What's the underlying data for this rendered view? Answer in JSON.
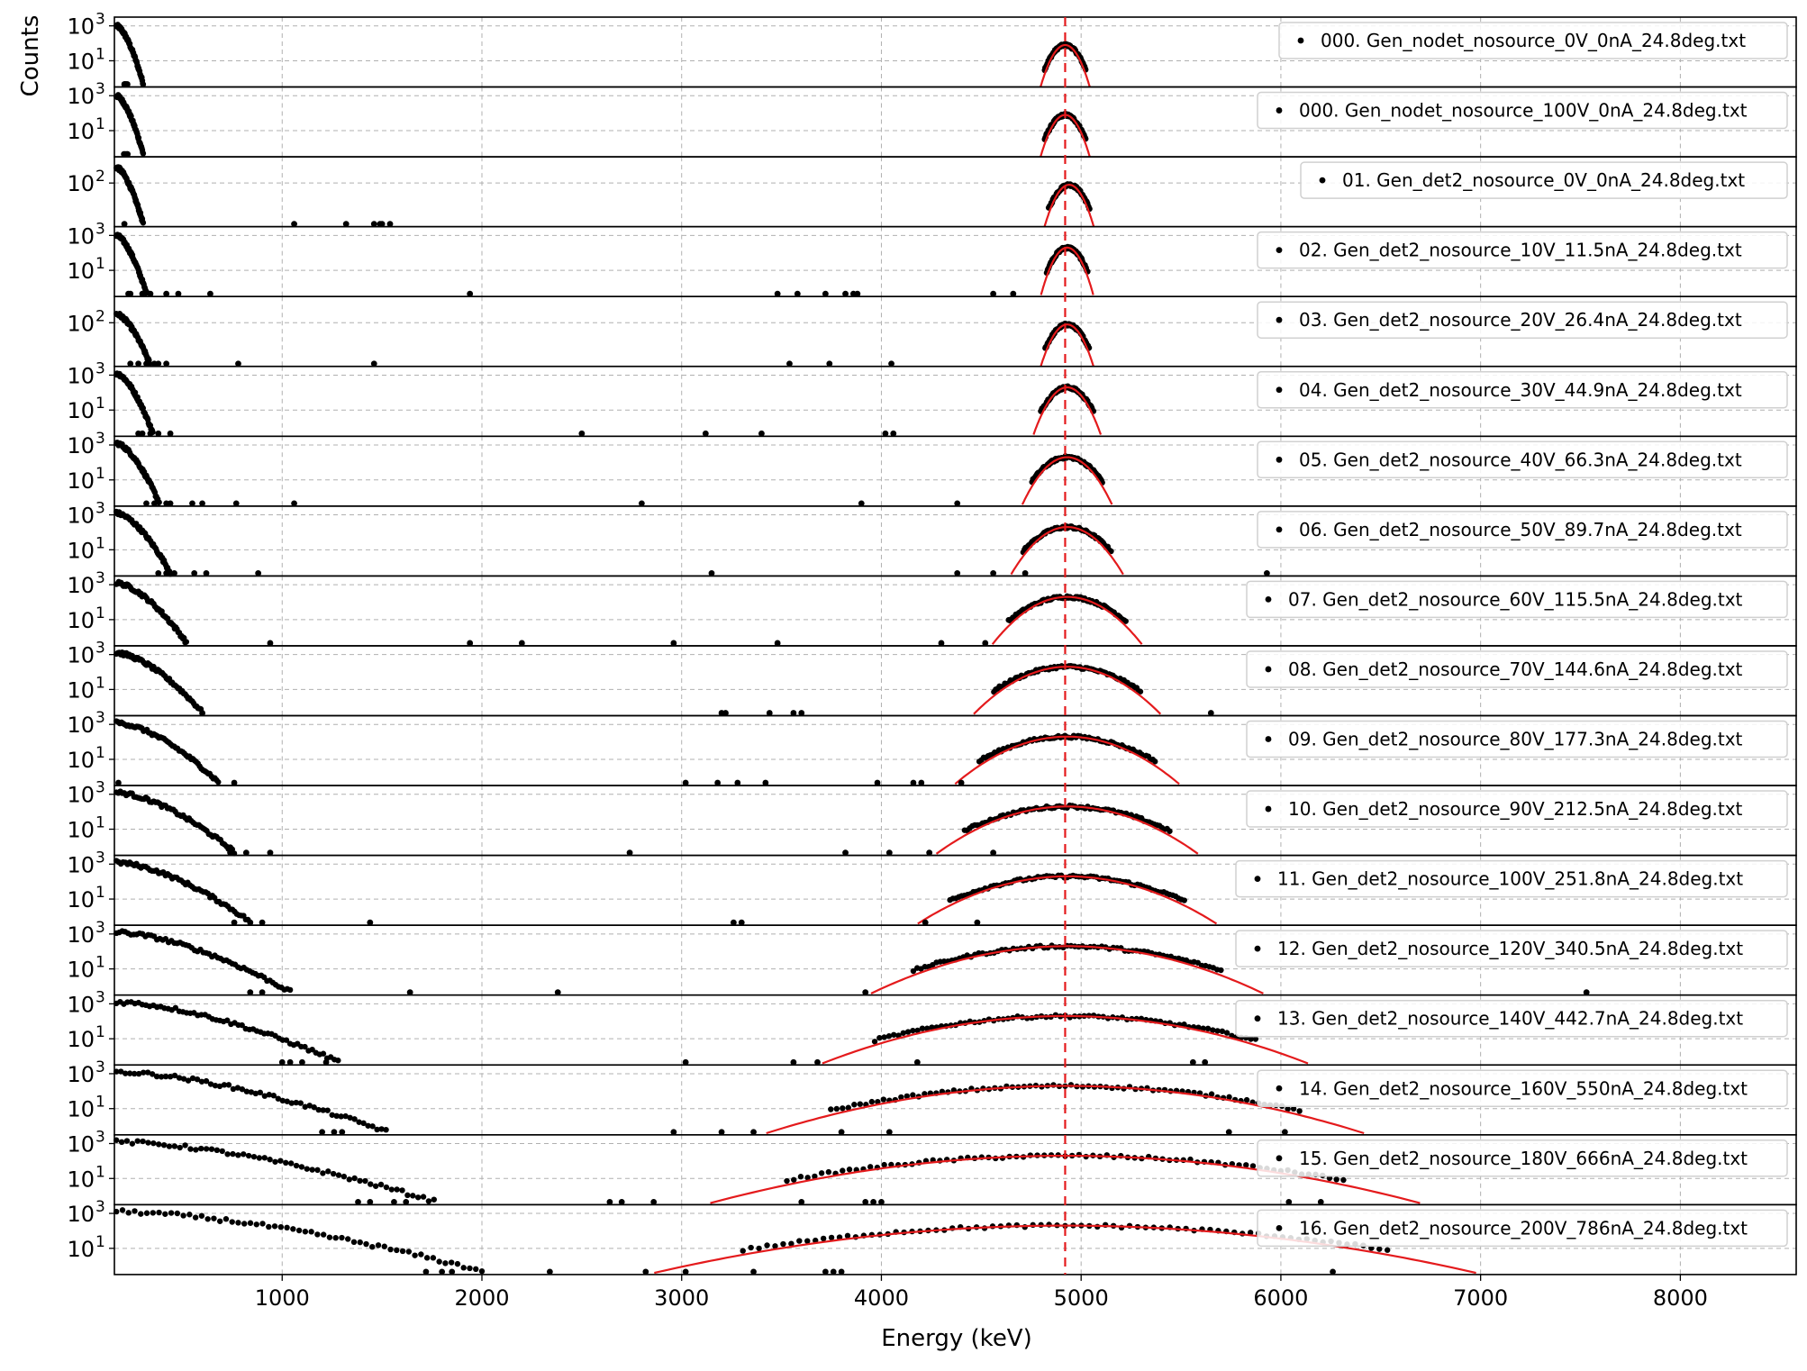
{
  "chart_data": {
    "type": "scatter",
    "layout": "stacked-panels-shared-x",
    "xlabel": "Energy (keV)",
    "ylabel": "Counts",
    "xlim": [
      160,
      8580
    ],
    "x_ticks": [
      1000,
      2000,
      3000,
      4000,
      5000,
      6000,
      7000,
      8000
    ],
    "y_scale": "log",
    "grid": true,
    "legend_position": "top-right",
    "marker_color": "#000000",
    "fit_color": "#e41a1c",
    "reference_line": {
      "x": 4920,
      "style": "dashed",
      "color": "#e41a1c"
    },
    "panels": [
      {
        "legend": "000. Gen_nodet_nosource_0V_0nA_24.8deg.txt",
        "yticks": [
          {
            "label": "10",
            "exp": "3"
          },
          {
            "label": "10",
            "exp": "1"
          }
        ],
        "noise": {
          "amp": 3.3,
          "width": 18
        },
        "peak": {
          "center": 4920,
          "sigma": 14,
          "amp": 1.9
        },
        "stray_x": [
          210,
          215,
          220,
          225,
          212
        ]
      },
      {
        "legend": "000. Gen_nodet_nosource_100V_0nA_24.8deg.txt",
        "yticks": [
          {
            "label": "10",
            "exp": "3"
          },
          {
            "label": "10",
            "exp": "1"
          }
        ],
        "noise": {
          "amp": 3.3,
          "width": 18
        },
        "peak": {
          "center": 4920,
          "sigma": 14,
          "amp": 1.9
        },
        "stray_x": [
          208,
          214,
          222,
          226
        ]
      },
      {
        "legend": "01. Gen_det2_nosource_0V_0nA_24.8deg.txt",
        "yticks": [
          {
            "label": "10",
            "exp": "2"
          }
        ],
        "noise": {
          "amp": 3.2,
          "width": 18
        },
        "peak": {
          "center": 4940,
          "sigma": 14,
          "amp": 1.9
        },
        "stray_x": [
          210,
          1060,
          1320,
          1460,
          1490,
          1500,
          1540
        ]
      },
      {
        "legend": "02. Gen_det2_nosource_10V_11.5nA_24.8deg.txt",
        "yticks": [
          {
            "label": "10",
            "exp": "3"
          },
          {
            "label": "10",
            "exp": "1"
          }
        ],
        "noise": {
          "amp": 3.3,
          "width": 20
        },
        "peak": {
          "center": 4930,
          "sigma": 14,
          "amp": 2.3
        },
        "stray_x": [
          230,
          240,
          300,
          340,
          420,
          480,
          640,
          1940,
          3480,
          3580,
          3720,
          3820,
          3860,
          3880,
          4560,
          4660
        ]
      },
      {
        "legend": "03. Gen_det2_nosource_20V_26.4nA_24.8deg.txt",
        "yticks": [
          {
            "label": "10",
            "exp": "2"
          }
        ],
        "noise": {
          "amp": 2.8,
          "width": 22
        },
        "peak": {
          "center": 4930,
          "sigma": 15,
          "amp": 1.9
        },
        "stray_x": [
          240,
          280,
          320,
          360,
          380,
          420,
          780,
          1460,
          3540,
          3740,
          4050
        ]
      },
      {
        "legend": "04. Gen_det2_nosource_30V_44.9nA_24.8deg.txt",
        "yticks": [
          {
            "label": "10",
            "exp": "3"
          },
          {
            "label": "10",
            "exp": "1"
          }
        ],
        "noise": {
          "amp": 3.4,
          "width": 24
        },
        "peak": {
          "center": 4930,
          "sigma": 18,
          "amp": 2.3
        },
        "stray_x": [
          280,
          300,
          340,
          380,
          440,
          2500,
          3120,
          3400,
          4020,
          4060
        ]
      },
      {
        "legend": "05. Gen_det2_nosource_40V_66.3nA_24.8deg.txt",
        "yticks": [
          {
            "label": "10",
            "exp": "3"
          },
          {
            "label": "10",
            "exp": "1"
          }
        ],
        "noise": {
          "amp": 3.4,
          "width": 28
        },
        "peak": {
          "center": 4930,
          "sigma": 24,
          "amp": 2.3
        },
        "stray_x": [
          320,
          360,
          420,
          440,
          550,
          600,
          770,
          1060,
          2800,
          3900,
          4380
        ]
      },
      {
        "legend": "06. Gen_det2_nosource_50V_89.7nA_24.8deg.txt",
        "yticks": [
          {
            "label": "10",
            "exp": "3"
          },
          {
            "label": "10",
            "exp": "1"
          }
        ],
        "noise": {
          "amp": 3.4,
          "width": 35
        },
        "peak": {
          "center": 4930,
          "sigma": 30,
          "amp": 2.3
        },
        "stray_x": [
          380,
          420,
          460,
          560,
          620,
          880,
          3150,
          4380,
          4560,
          4720,
          5930
        ]
      },
      {
        "legend": "07. Gen_det2_nosource_60V_115.5nA_24.8deg.txt",
        "yticks": [
          {
            "label": "10",
            "exp": "3"
          },
          {
            "label": "10",
            "exp": "1"
          }
        ],
        "noise": {
          "amp": 3.4,
          "width": 45
        },
        "peak": {
          "center": 4930,
          "sigma": 40,
          "amp": 2.3
        },
        "stray_x": [
          940,
          1940,
          2200,
          2960,
          3480,
          4300,
          4520
        ]
      },
      {
        "legend": "08. Gen_det2_nosource_70V_144.6nA_24.8deg.txt",
        "yticks": [
          {
            "label": "10",
            "exp": "3"
          },
          {
            "label": "10",
            "exp": "1"
          }
        ],
        "noise": {
          "amp": 3.4,
          "width": 55
        },
        "peak": {
          "center": 4930,
          "sigma": 50,
          "amp": 2.3
        },
        "stray_x": [
          600,
          3200,
          3220,
          3440,
          3560,
          3600,
          5650
        ]
      },
      {
        "legend": "09. Gen_det2_nosource_80V_177.3nA_24.8deg.txt",
        "yticks": [
          {
            "label": "10",
            "exp": "3"
          },
          {
            "label": "10",
            "exp": "1"
          }
        ],
        "noise": {
          "amp": 3.4,
          "width": 65
        },
        "peak": {
          "center": 4930,
          "sigma": 60,
          "amp": 2.3
        },
        "stray_x": [
          180,
          760,
          3020,
          3180,
          3280,
          3420,
          3980,
          4160,
          4200,
          4400
        ]
      },
      {
        "legend": "10. Gen_det2_nosource_90V_212.5nA_24.8deg.txt",
        "yticks": [
          {
            "label": "10",
            "exp": "3"
          },
          {
            "label": "10",
            "exp": "1"
          }
        ],
        "noise": {
          "amp": 3.4,
          "width": 75
        },
        "peak": {
          "center": 4930,
          "sigma": 70,
          "amp": 2.3
        },
        "stray_x": [
          740,
          820,
          940,
          2740,
          3820,
          4040,
          4240,
          4560
        ]
      },
      {
        "legend": "11. Gen_det2_nosource_100V_251.8nA_24.8deg.txt",
        "yticks": [
          {
            "label": "10",
            "exp": "3"
          },
          {
            "label": "10",
            "exp": "1"
          }
        ],
        "noise": {
          "amp": 3.4,
          "width": 85
        },
        "peak": {
          "center": 4930,
          "sigma": 80,
          "amp": 2.3
        },
        "stray_x": [
          760,
          840,
          900,
          1440,
          3260,
          3300,
          4220,
          4480
        ]
      },
      {
        "legend": "12. Gen_det2_nosource_120V_340.5nA_24.8deg.txt",
        "yticks": [
          {
            "label": "10",
            "exp": "3"
          },
          {
            "label": "10",
            "exp": "1"
          }
        ],
        "noise": {
          "amp": 3.4,
          "width": 110
        },
        "peak": {
          "center": 4930,
          "sigma": 105,
          "amp": 2.3
        },
        "stray_x": [
          840,
          900,
          1640,
          2380,
          3920,
          7530
        ]
      },
      {
        "legend": "13. Gen_det2_nosource_140V_442.7nA_24.8deg.txt",
        "yticks": [
          {
            "label": "10",
            "exp": "3"
          },
          {
            "label": "10",
            "exp": "1"
          }
        ],
        "noise": {
          "amp": 3.4,
          "width": 140
        },
        "peak": {
          "center": 4920,
          "sigma": 130,
          "amp": 2.3
        },
        "stray_x": [
          1000,
          1040,
          1100,
          1220,
          3020,
          3560,
          3680,
          4180,
          5560,
          5620
        ]
      },
      {
        "legend": "14. Gen_det2_nosource_160V_550nA_24.8deg.txt",
        "yticks": [
          {
            "label": "10",
            "exp": "3"
          },
          {
            "label": "10",
            "exp": "1"
          }
        ],
        "noise": {
          "amp": 3.4,
          "width": 170
        },
        "peak": {
          "center": 4920,
          "sigma": 160,
          "amp": 2.3
        },
        "stray_x": [
          1200,
          1260,
          1300,
          2960,
          3200,
          3360,
          3800,
          4040,
          5740,
          6020
        ]
      },
      {
        "legend": "15. Gen_det2_nosource_180V_666nA_24.8deg.txt",
        "yticks": [
          {
            "label": "10",
            "exp": "3"
          },
          {
            "label": "10",
            "exp": "1"
          }
        ],
        "noise": {
          "amp": 3.4,
          "width": 200
        },
        "peak": {
          "center": 4920,
          "sigma": 190,
          "amp": 2.3
        },
        "stray_x": [
          1380,
          1440,
          1560,
          1620,
          2640,
          2700,
          2860,
          3600,
          3920,
          3960,
          4000,
          6040,
          6200
        ]
      },
      {
        "legend": "16. Gen_det2_nosource_200V_786nA_24.8deg.txt",
        "yticks": [
          {
            "label": "10",
            "exp": "3"
          },
          {
            "label": "10",
            "exp": "1"
          }
        ],
        "noise": {
          "amp": 3.4,
          "width": 230
        },
        "peak": {
          "center": 4920,
          "sigma": 220,
          "amp": 2.3
        },
        "stray_x": [
          1720,
          1800,
          1850,
          2340,
          2820,
          3020,
          3360,
          3720,
          3760,
          3800,
          6260
        ]
      }
    ]
  }
}
